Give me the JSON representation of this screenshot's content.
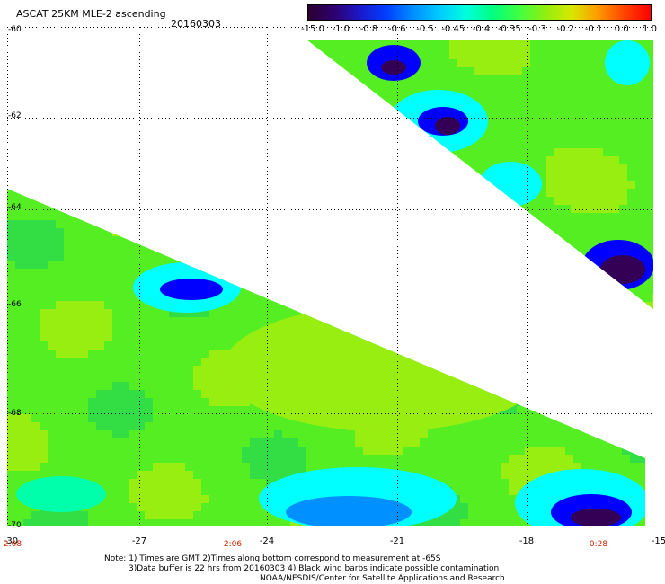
{
  "header": {
    "title": "ASCAT 25KM MLE-2 ascending",
    "date": "20160303"
  },
  "colorbar": {
    "ticks": [
      "-15.0",
      "-1.0",
      "-0.8",
      "-0.6",
      "-0.5",
      "-0.45",
      "-0.4",
      "-0.35",
      "-0.3",
      "-0.2",
      "-0.1",
      "0.0",
      "1.0"
    ],
    "colors": [
      "#2a0030",
      "#2e0070",
      "#1a1acc",
      "#0040ff",
      "#0090ff",
      "#00ccff",
      "#00ffdd",
      "#00ff80",
      "#40ff40",
      "#90ee10",
      "#d8e800",
      "#ff9900",
      "#ff4400",
      "#ff0000"
    ]
  },
  "map": {
    "lat_labels": [
      "-60",
      "-62",
      "-64",
      "-66",
      "-68",
      "-70"
    ],
    "lon_labels": [
      "-30",
      "-27",
      "-24",
      "-21",
      "-18",
      "-15"
    ],
    "time_labels": [
      "2:08",
      "2:06",
      "0:28"
    ],
    "colors": {
      "background": "#ffffff",
      "grid": "#000000",
      "land_green": "#55ee22",
      "yellow_green": "#99ee11",
      "cyan": "#00ffff",
      "blue": "#0000ff",
      "dark_purple": "#330055",
      "time_label": "#cc2200"
    }
  },
  "notes": {
    "line1": "Note: 1) Times are GMT 2)Times along bottom correspond to measurement at -65S",
    "line2": "3)Data buffer is 22 hrs from 20160303 4) Black wind barbs indicate possible contamination",
    "line3": "NOAA/NESDIS/Center for Satellite Applications and Research"
  }
}
